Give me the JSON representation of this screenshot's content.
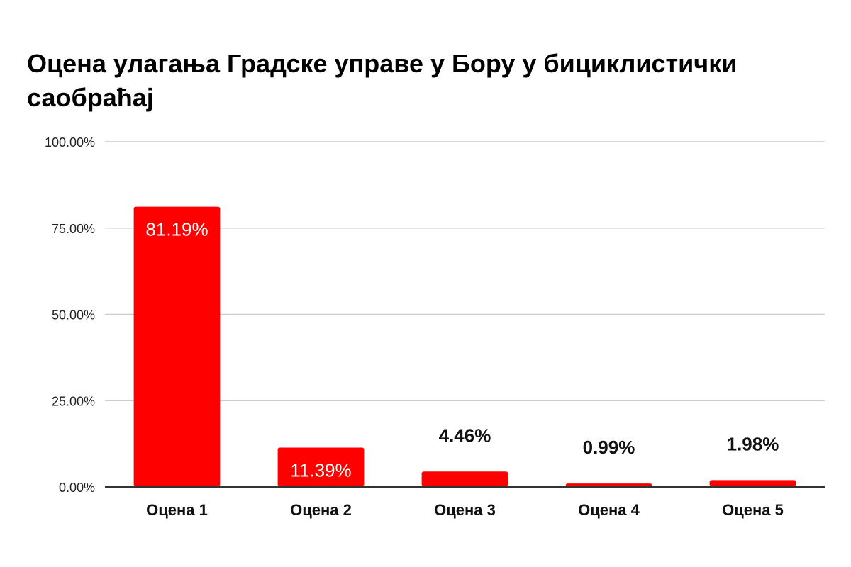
{
  "chart_data": {
    "type": "bar",
    "title": "Оцена улагања Градске управе у Бору у бициклистички саобраћај",
    "categories": [
      "Оцена 1",
      "Оцена 2",
      "Оцена 3",
      "Оцена 4",
      "Оцена 5"
    ],
    "values": [
      81.19,
      11.39,
      4.46,
      0.99,
      1.98
    ],
    "data_labels": [
      "81.19%",
      "11.39%",
      "4.46%",
      "0.99%",
      "1.98%"
    ],
    "ylim": [
      0,
      100
    ],
    "yticks": [
      0,
      25,
      50,
      75,
      100
    ],
    "ytick_labels": [
      "0.00%",
      "25.00%",
      "50.00%",
      "75.00%",
      "100.00%"
    ],
    "xlabel": "",
    "ylabel": "",
    "grid": true,
    "legend": "none",
    "bar_color": "#ff0000",
    "gridline_color": "#cccccc",
    "axis_color": "#333333"
  }
}
